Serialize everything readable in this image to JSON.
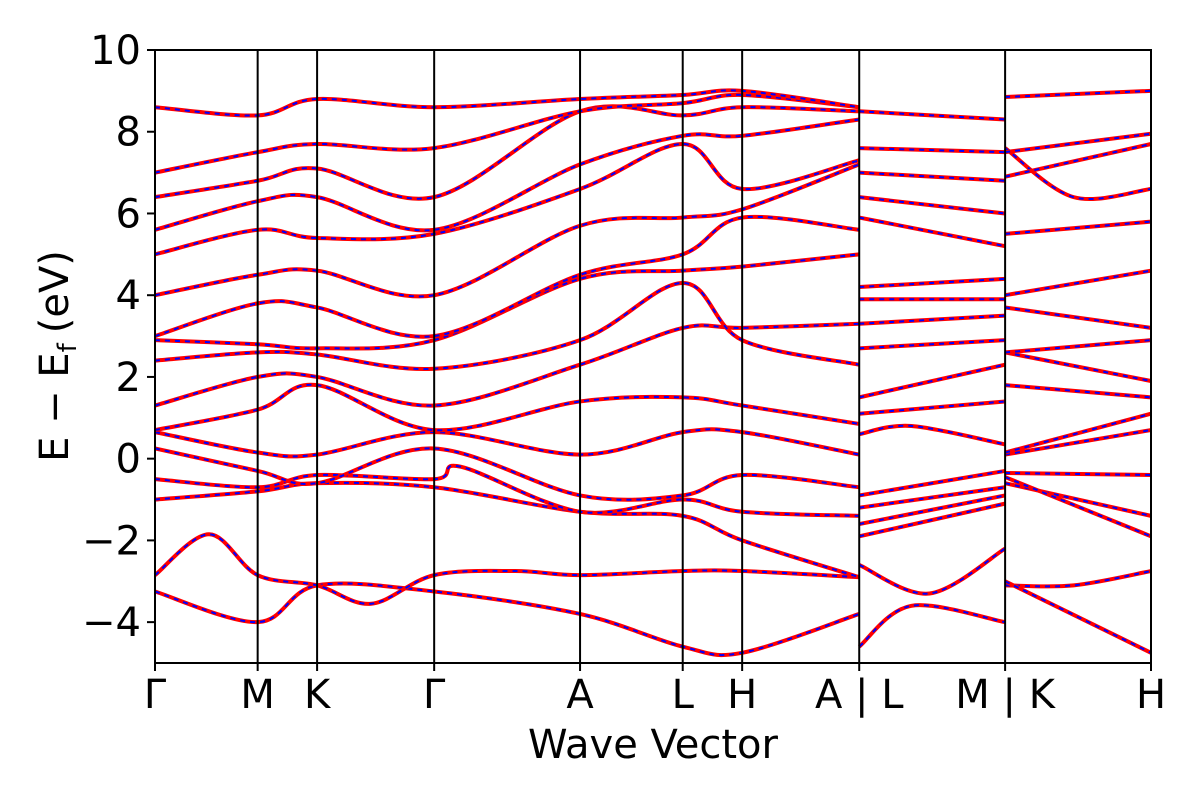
{
  "chart_data": {
    "type": "line",
    "title": "",
    "xlabel": "Wave Vector",
    "ylabel": "E − E",
    "ylabel_sub": "f",
    "ylabel_unit": "(eV)",
    "ylim": [
      -5,
      10
    ],
    "xlim": [
      0,
      5.53
    ],
    "yticks": [
      -4,
      -2,
      0,
      2,
      4,
      6,
      8,
      10
    ],
    "ytick_labels": [
      "−4",
      "−2",
      "0",
      "2",
      "4",
      "6",
      "8",
      "10"
    ],
    "kpoints": [
      {
        "label": "Γ",
        "x": 0.0
      },
      {
        "label": "M",
        "x": 0.57
      },
      {
        "label": "K",
        "x": 0.9
      },
      {
        "label": "Γ",
        "x": 1.55
      },
      {
        "label": "A",
        "x": 2.36
      },
      {
        "label": "L",
        "x": 2.93
      },
      {
        "label": "H",
        "x": 3.26
      },
      {
        "label": "A | L",
        "x": 3.91
      },
      {
        "label": "M | K",
        "x": 4.72
      },
      {
        "label": "H",
        "x": 5.53
      }
    ],
    "segment_breaks": [
      3.91,
      4.72
    ],
    "series_style": {
      "primary_color": "#ff0000",
      "overlay_color": "#0000ff",
      "overlay_dashed": true
    },
    "bands": [
      {
        "x": [
          0,
          0.57,
          0.9,
          1.55,
          2.36,
          2.93,
          3.26,
          3.91
        ],
        "y": [
          -3.25,
          -4.0,
          -3.1,
          -3.25,
          -3.8,
          -4.6,
          -4.75,
          -3.8
        ]
      },
      {
        "x": [
          0,
          0.3,
          0.57,
          0.9,
          1.2,
          1.55,
          2.0,
          2.36,
          2.93,
          3.26,
          3.91
        ],
        "y": [
          -2.85,
          -1.85,
          -2.85,
          -3.1,
          -3.55,
          -2.85,
          -2.75,
          -2.85,
          -2.75,
          -2.75,
          -2.9
        ]
      },
      {
        "x": [
          0,
          0.57,
          0.9,
          1.55,
          2.36,
          2.93,
          3.26,
          3.91
        ],
        "y": [
          -1.0,
          -0.8,
          -0.6,
          -0.7,
          -1.3,
          -1.4,
          -2.0,
          -2.9
        ]
      },
      {
        "x": [
          0,
          0.57,
          0.9,
          1.55,
          1.7,
          2.36,
          2.93,
          3.26,
          3.91
        ],
        "y": [
          -0.5,
          -0.7,
          -0.4,
          -0.5,
          -0.2,
          -1.3,
          -1.0,
          -1.3,
          -1.4
        ]
      },
      {
        "x": [
          0,
          0.57,
          0.9,
          1.55,
          2.36,
          2.93,
          3.26,
          3.91
        ],
        "y": [
          0.25,
          -0.3,
          -0.6,
          0.25,
          -0.9,
          -0.9,
          -0.4,
          -0.7
        ]
      },
      {
        "x": [
          0,
          0.57,
          0.9,
          1.55,
          2.36,
          2.93,
          3.26,
          3.91
        ],
        "y": [
          0.65,
          0.15,
          0.1,
          0.65,
          0.1,
          0.65,
          0.65,
          0.1
        ]
      },
      {
        "x": [
          0,
          0.57,
          0.9,
          1.55,
          2.36,
          2.93,
          3.26,
          3.91
        ],
        "y": [
          0.7,
          1.2,
          1.8,
          0.7,
          1.4,
          1.5,
          1.3,
          0.85
        ]
      },
      {
        "x": [
          0,
          0.57,
          0.9,
          1.55,
          2.36,
          2.93,
          3.26,
          3.91
        ],
        "y": [
          1.3,
          2.0,
          2.0,
          1.3,
          2.3,
          3.2,
          3.2,
          3.3
        ]
      },
      {
        "x": [
          0,
          0.57,
          0.9,
          1.55,
          2.36,
          2.93,
          3.26,
          3.91
        ],
        "y": [
          2.4,
          2.6,
          2.55,
          2.2,
          2.9,
          4.3,
          2.9,
          2.3
        ]
      },
      {
        "x": [
          0,
          0.57,
          0.9,
          1.55,
          2.36,
          2.93,
          3.26,
          3.91
        ],
        "y": [
          2.9,
          2.8,
          2.7,
          2.9,
          4.4,
          4.6,
          4.7,
          5.0
        ]
      },
      {
        "x": [
          0,
          0.57,
          0.9,
          1.55,
          2.36,
          2.93,
          3.26,
          3.91
        ],
        "y": [
          3.0,
          3.8,
          3.7,
          3.0,
          4.5,
          5.0,
          5.9,
          5.6
        ]
      },
      {
        "x": [
          0,
          0.57,
          0.9,
          1.55,
          2.36,
          2.93,
          3.26,
          3.91
        ],
        "y": [
          4.0,
          4.5,
          4.6,
          4.0,
          5.7,
          5.9,
          6.1,
          7.2
        ]
      },
      {
        "x": [
          0,
          0.57,
          0.9,
          1.55,
          2.36,
          2.93,
          3.26,
          3.91
        ],
        "y": [
          5.0,
          5.6,
          5.4,
          5.5,
          6.6,
          7.7,
          6.6,
          7.3
        ]
      },
      {
        "x": [
          0,
          0.57,
          0.9,
          1.55,
          2.36,
          2.93,
          3.26,
          3.91
        ],
        "y": [
          5.6,
          6.3,
          6.4,
          5.6,
          7.2,
          7.9,
          7.9,
          8.3
        ]
      },
      {
        "x": [
          0,
          0.57,
          0.9,
          1.55,
          2.36,
          2.93,
          3.26,
          3.91
        ],
        "y": [
          6.4,
          6.8,
          7.1,
          6.4,
          8.5,
          8.4,
          8.6,
          8.5
        ]
      },
      {
        "x": [
          0,
          0.57,
          0.9,
          1.55,
          2.36,
          2.93,
          3.26,
          3.91
        ],
        "y": [
          7.0,
          7.5,
          7.7,
          7.6,
          8.5,
          8.7,
          8.9,
          8.6
        ]
      },
      {
        "x": [
          0,
          0.57,
          0.9,
          1.55,
          2.36,
          2.93,
          3.26,
          3.91
        ],
        "y": [
          8.6,
          8.4,
          8.8,
          8.6,
          8.8,
          8.9,
          9.0,
          8.6
        ]
      },
      {
        "x": [
          3.91,
          4.2,
          4.72
        ],
        "y": [
          -4.6,
          -3.6,
          -4.0
        ]
      },
      {
        "x": [
          3.91,
          4.3,
          4.72
        ],
        "y": [
          -2.6,
          -3.3,
          -2.2
        ]
      },
      {
        "x": [
          3.91,
          4.72
        ],
        "y": [
          -1.9,
          -1.1
        ]
      },
      {
        "x": [
          3.91,
          4.72
        ],
        "y": [
          -1.6,
          -0.9
        ]
      },
      {
        "x": [
          3.91,
          4.72
        ],
        "y": [
          -1.2,
          -0.7
        ]
      },
      {
        "x": [
          3.91,
          4.72
        ],
        "y": [
          -0.9,
          -0.3
        ]
      },
      {
        "x": [
          3.91,
          4.2,
          4.72
        ],
        "y": [
          0.6,
          0.8,
          0.35
        ]
      },
      {
        "x": [
          3.91,
          4.72
        ],
        "y": [
          1.1,
          1.4
        ]
      },
      {
        "x": [
          3.91,
          4.72
        ],
        "y": [
          1.5,
          2.3
        ]
      },
      {
        "x": [
          3.91,
          4.72
        ],
        "y": [
          2.7,
          2.9
        ]
      },
      {
        "x": [
          3.91,
          4.72
        ],
        "y": [
          3.3,
          3.5
        ]
      },
      {
        "x": [
          3.91,
          4.72
        ],
        "y": [
          3.9,
          3.9
        ]
      },
      {
        "x": [
          3.91,
          4.72
        ],
        "y": [
          4.2,
          4.4
        ]
      },
      {
        "x": [
          3.91,
          4.72
        ],
        "y": [
          5.9,
          5.2
        ]
      },
      {
        "x": [
          3.91,
          4.72
        ],
        "y": [
          6.4,
          6.0
        ]
      },
      {
        "x": [
          3.91,
          4.72
        ],
        "y": [
          7.0,
          6.8
        ]
      },
      {
        "x": [
          3.91,
          4.72
        ],
        "y": [
          7.6,
          7.5
        ]
      },
      {
        "x": [
          3.91,
          4.72
        ],
        "y": [
          8.5,
          8.3
        ]
      },
      {
        "x": [
          4.72,
          5.1,
          5.53
        ],
        "y": [
          -3.1,
          -3.1,
          -2.75
        ]
      },
      {
        "x": [
          4.72,
          5.53
        ],
        "y": [
          -3.0,
          -4.75
        ]
      },
      {
        "x": [
          4.72,
          5.53
        ],
        "y": [
          -0.6,
          -1.4
        ]
      },
      {
        "x": [
          4.72,
          5.53
        ],
        "y": [
          -0.45,
          -1.9
        ]
      },
      {
        "x": [
          4.72,
          5.53
        ],
        "y": [
          -0.35,
          -0.4
        ]
      },
      {
        "x": [
          4.72,
          5.53
        ],
        "y": [
          0.1,
          0.7
        ]
      },
      {
        "x": [
          4.72,
          5.53
        ],
        "y": [
          0.15,
          1.1
        ]
      },
      {
        "x": [
          4.72,
          5.53
        ],
        "y": [
          1.8,
          1.5
        ]
      },
      {
        "x": [
          4.72,
          5.53
        ],
        "y": [
          2.6,
          1.9
        ]
      },
      {
        "x": [
          4.72,
          5.53
        ],
        "y": [
          2.6,
          2.9
        ]
      },
      {
        "x": [
          4.72,
          5.53
        ],
        "y": [
          3.7,
          3.2
        ]
      },
      {
        "x": [
          4.72,
          5.53
        ],
        "y": [
          4.0,
          4.6
        ]
      },
      {
        "x": [
          4.72,
          5.53
        ],
        "y": [
          5.5,
          5.8
        ]
      },
      {
        "x": [
          4.72,
          5.1,
          5.53
        ],
        "y": [
          7.6,
          6.4,
          6.6
        ]
      },
      {
        "x": [
          4.72,
          5.53
        ],
        "y": [
          6.9,
          7.7
        ]
      },
      {
        "x": [
          4.72,
          5.53
        ],
        "y": [
          8.85,
          9.0
        ]
      },
      {
        "x": [
          4.72,
          5.53
        ],
        "y": [
          7.5,
          7.95
        ]
      }
    ]
  }
}
